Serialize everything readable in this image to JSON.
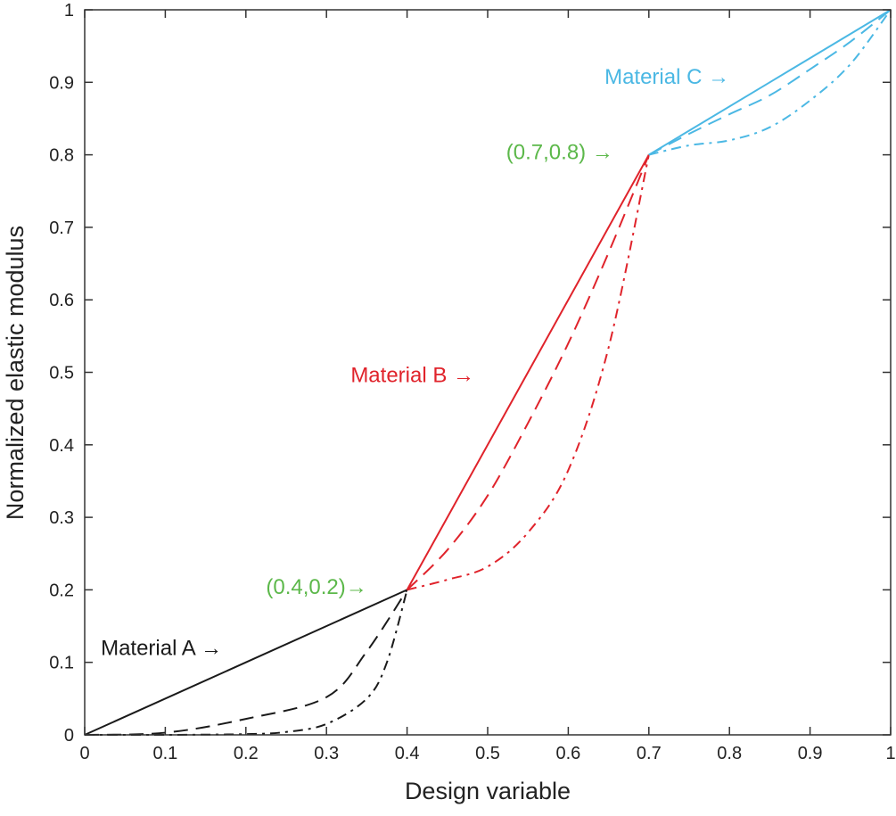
{
  "chart_data": {
    "type": "line",
    "title": "",
    "xlabel": "Design variable",
    "ylabel": "Normalized elastic modulus",
    "xlim": [
      0,
      1
    ],
    "ylim": [
      0,
      1
    ],
    "xticks": [
      "0",
      "0.1",
      "0.2",
      "0.3",
      "0.4",
      "0.5",
      "0.6",
      "0.7",
      "0.8",
      "0.9",
      "1"
    ],
    "yticks": [
      "0",
      "0.1",
      "0.2",
      "0.3",
      "0.4",
      "0.5",
      "0.6",
      "0.7",
      "0.8",
      "0.9",
      "1"
    ],
    "grid": false,
    "colors": {
      "A": "#1a1a1a",
      "B": "#e0232b",
      "C": "#4bb8e4",
      "point": "#5cb84a"
    },
    "series": [
      {
        "group": "A",
        "style": "solid",
        "x": [
          0,
          0.4
        ],
        "y": [
          0,
          0.2
        ]
      },
      {
        "group": "A",
        "style": "dashed",
        "x": [
          0,
          0.1,
          0.2,
          0.3,
          0.35,
          0.4
        ],
        "y": [
          0,
          0.003,
          0.022,
          0.052,
          0.115,
          0.2
        ]
      },
      {
        "group": "A",
        "style": "dashdot",
        "x": [
          0,
          0.1,
          0.2,
          0.25,
          0.3,
          0.35,
          0.375,
          0.4
        ],
        "y": [
          0,
          0,
          0.001,
          0.004,
          0.015,
          0.05,
          0.1,
          0.2
        ]
      },
      {
        "group": "B",
        "style": "solid",
        "x": [
          0.4,
          0.7
        ],
        "y": [
          0.2,
          0.8
        ]
      },
      {
        "group": "B",
        "style": "dashed",
        "x": [
          0.4,
          0.45,
          0.5,
          0.55,
          0.6,
          0.65,
          0.7
        ],
        "y": [
          0.2,
          0.255,
          0.33,
          0.43,
          0.54,
          0.665,
          0.8
        ]
      },
      {
        "group": "B",
        "style": "dashdot",
        "x": [
          0.4,
          0.45,
          0.5,
          0.55,
          0.6,
          0.65,
          0.7
        ],
        "y": [
          0.2,
          0.214,
          0.232,
          0.279,
          0.365,
          0.534,
          0.8
        ]
      },
      {
        "group": "C",
        "style": "solid",
        "x": [
          0.7,
          1
        ],
        "y": [
          0.8,
          1
        ]
      },
      {
        "group": "C",
        "style": "dashed",
        "x": [
          0.7,
          0.75,
          0.8,
          0.85,
          0.9,
          0.95,
          1
        ],
        "y": [
          0.8,
          0.829,
          0.856,
          0.882,
          0.918,
          0.956,
          1
        ]
      },
      {
        "group": "C",
        "style": "dashdot",
        "x": [
          0.7,
          0.75,
          0.8,
          0.85,
          0.9,
          0.95,
          1
        ],
        "y": [
          0.8,
          0.813,
          0.82,
          0.838,
          0.875,
          0.925,
          1
        ]
      }
    ],
    "annotations": [
      {
        "text": "Material A →",
        "color_key": "A",
        "x": 0.02,
        "y": 0.118
      },
      {
        "text": "Material B →",
        "color_key": "B",
        "x": 0.33,
        "y": 0.494
      },
      {
        "text": "Material C →",
        "color_key": "C",
        "x": 0.645,
        "y": 0.906
      },
      {
        "text": "(0.7,0.8) →",
        "color_key": "point",
        "x": 0.523,
        "y": 0.802
      },
      {
        "text": "(0.4,0.2)→",
        "color_key": "point",
        "x": 0.225,
        "y": 0.202
      }
    ]
  }
}
